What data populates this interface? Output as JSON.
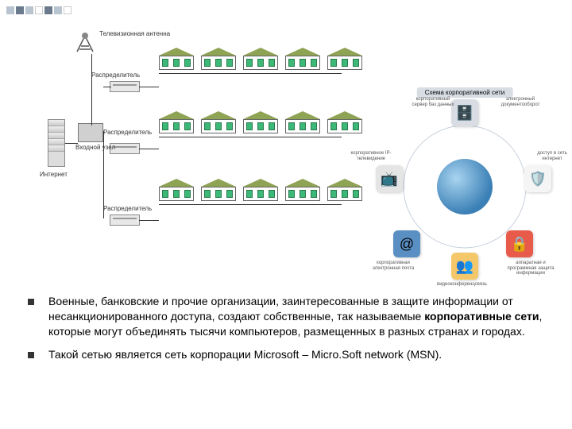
{
  "labels": {
    "antenna": "Телевизионная\nантенна",
    "distributor": "Распределитель",
    "input_node": "Входной\nузел",
    "internet": "Интернет"
  },
  "circular": {
    "title": "Схема корпоративной сети",
    "nodes": [
      {
        "pos": "top",
        "icon": "🗄️",
        "bg": "#d9dde3",
        "label": "корпоративный сервер баз данных",
        "label2": "электронный документооборот"
      },
      {
        "pos": "right",
        "icon": "🛡️",
        "bg": "#f5f5f5",
        "label": "доступ в сеть интернет"
      },
      {
        "pos": "br",
        "icon": "🔒",
        "bg": "#e85a4a",
        "label": "аппаратная и программная защита информации"
      },
      {
        "pos": "bottom",
        "icon": "👥",
        "bg": "#f4c86a",
        "label": "видеоконференцсвязь"
      },
      {
        "pos": "bl",
        "icon": "@",
        "bg": "#5a8fc4",
        "label": "корпоративная электронная почта"
      },
      {
        "pos": "left",
        "icon": "📺",
        "bg": "#e5e5e5",
        "label": "корпоративное IP-телевидение"
      }
    ]
  },
  "bullets": [
    {
      "pre": "Военные, банковские и прочие организации, заинтересованные в защите информации от несанкционированного доступа, создают собственные, так называемые ",
      "bold": "корпоративные сети",
      "post": ", которые могут объединять тысячи компьютеров, размещенных в разных странах и городах."
    },
    {
      "pre": "Такой сетью является сеть корпорации Microsoft – Micro.Soft network (MSN).",
      "bold": "",
      "post": ""
    }
  ],
  "style": {
    "house_roof": "#8fa354",
    "house_win": "#3cb878",
    "globe_light": "#a8d4f0",
    "globe_dark": "#3a7fb5"
  }
}
